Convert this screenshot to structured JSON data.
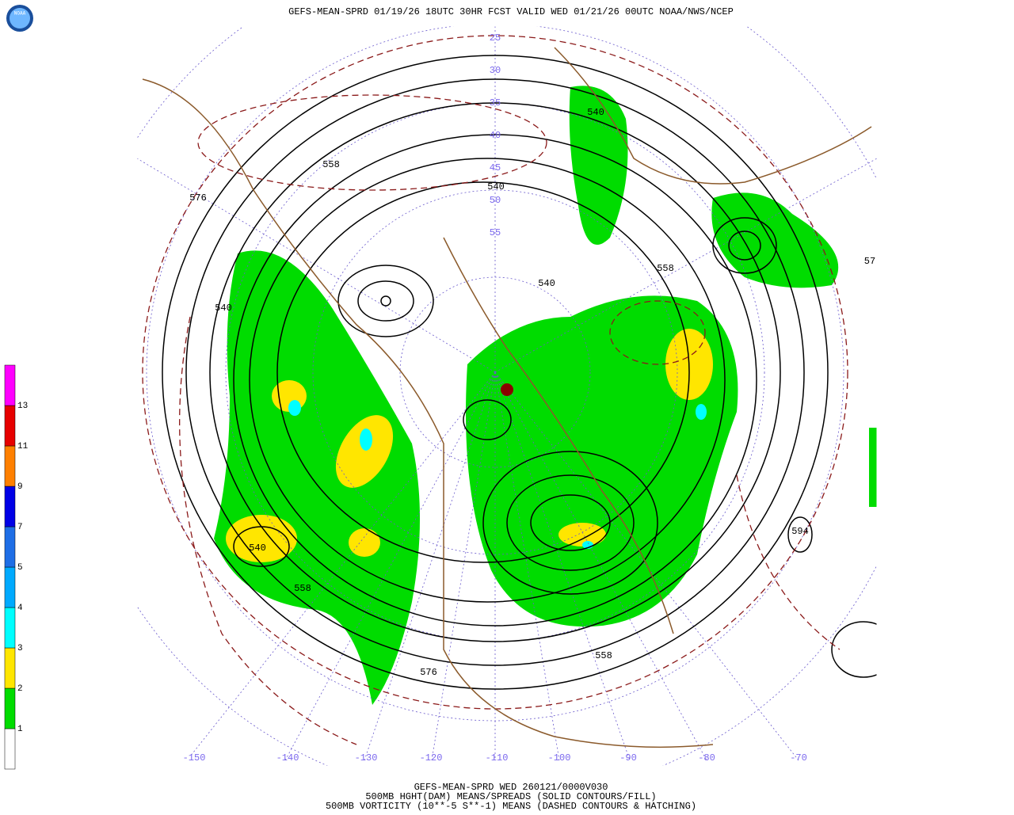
{
  "header": {
    "logo": "NOAA",
    "title": "GEFS-MEAN-SPRD 01/19/26 18UTC 30HR FCST VALID WED 01/21/26 00UTC NOAA/NWS/NCEP"
  },
  "footer": {
    "lines": [
      "GEFS-MEAN-SPRD WED 260121/0000V030",
      "500MB HGHT(DAM) MEANS/SPREADS (SOLID CONTOURS/FILL)",
      "500MB VORTICITY (10**-5 S**-1) MEANS (DASHED CONTOURS & HATCHING)"
    ]
  },
  "legend": {
    "levels": [
      "1",
      "2",
      "3",
      "4",
      "5",
      "7",
      "9",
      "11",
      "13"
    ],
    "colors": [
      "#ffffff",
      "#00dc00",
      "#ffe600",
      "#00ffff",
      "#00aaff",
      "#1e6ee6",
      "#0000e6",
      "#ff8000",
      "#e60000",
      "#ff00ff"
    ]
  },
  "map": {
    "contour_labels": [
      "576",
      "558",
      "540",
      "540",
      "540",
      "558",
      "540",
      "594",
      "540",
      "558",
      "576",
      "558",
      "57"
    ],
    "lat_labels": [
      "25",
      "30",
      "35",
      "40",
      "45",
      "50",
      "55"
    ],
    "lon_labels": [
      "-150",
      "-140",
      "-130",
      "-120",
      "-110",
      "-100",
      "-90",
      "-80",
      "-70"
    ]
  }
}
